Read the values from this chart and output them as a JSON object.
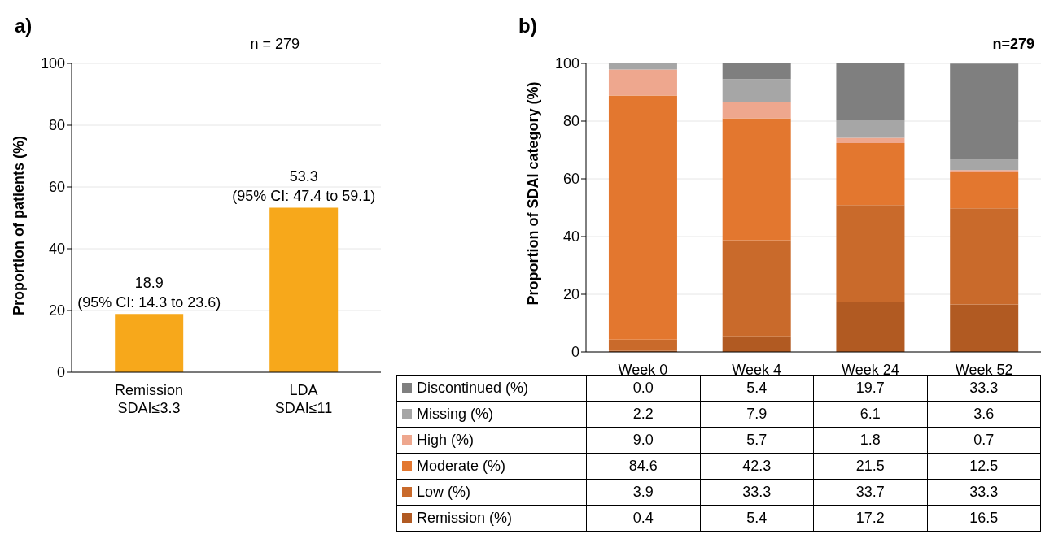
{
  "chart_data": [
    {
      "type": "bar",
      "title": "a)",
      "annotations": [
        "n = 279"
      ],
      "categories": [
        "Remission\nSDAI≤3.3",
        "LDA\nSDAI≤11"
      ],
      "values": [
        18.9,
        53.3
      ],
      "value_labels": [
        "18.9\n(95% CI: 14.3 to 23.6)",
        "53.3\n(95% CI: 47.4 to 59.1)"
      ],
      "color": "#f7a81b",
      "ylabel": "Proportion of patients (%)",
      "ylim": [
        0,
        100
      ],
      "yticks": [
        0,
        20,
        40,
        60,
        80,
        100
      ],
      "grid": "y"
    },
    {
      "type": "bar",
      "stacked": true,
      "title": "b)",
      "annotations": [
        "n=279"
      ],
      "categories": [
        "Week 0",
        "Week 4",
        "Week 24",
        "Week 52"
      ],
      "ylabel": "Proportion of SDAI category (%)",
      "legend": "bottom",
      "ylim": [
        0,
        100
      ],
      "yticks": [
        0,
        20,
        40,
        60,
        80,
        100
      ],
      "grid": "y",
      "series": [
        {
          "name": "Remission (%)",
          "color": "#b15a22",
          "values": [
            0.4,
            5.4,
            17.2,
            16.5
          ],
          "value_labels": [
            "0.4",
            "5.4",
            "17.2",
            "16.5"
          ]
        },
        {
          "name": "Low (%)",
          "color": "#c96a2b",
          "values": [
            3.9,
            33.3,
            33.7,
            33.3
          ],
          "value_labels": [
            "3.9",
            "33.3",
            "33.7",
            "33.3"
          ]
        },
        {
          "name": "Moderate (%)",
          "color": "#e3772f",
          "values": [
            84.6,
            42.3,
            21.5,
            12.5
          ],
          "value_labels": [
            "84.6",
            "42.3",
            "21.5",
            "12.5"
          ]
        },
        {
          "name": "High (%)",
          "color": "#eea78e",
          "values": [
            9.0,
            5.7,
            1.8,
            0.7
          ],
          "value_labels": [
            "9.0",
            "5.7",
            "1.8",
            "0.7"
          ]
        },
        {
          "name": "Missing (%)",
          "color": "#a6a6a6",
          "values": [
            2.2,
            7.9,
            6.1,
            3.6
          ],
          "value_labels": [
            "2.2",
            "7.9",
            "6.1",
            "3.6"
          ]
        },
        {
          "name": "Discontinued (%)",
          "color": "#7f7f7f",
          "values": [
            0.0,
            5.4,
            19.7,
            33.3
          ],
          "value_labels": [
            "0.0",
            "5.4",
            "19.7",
            "33.3"
          ]
        }
      ]
    }
  ]
}
